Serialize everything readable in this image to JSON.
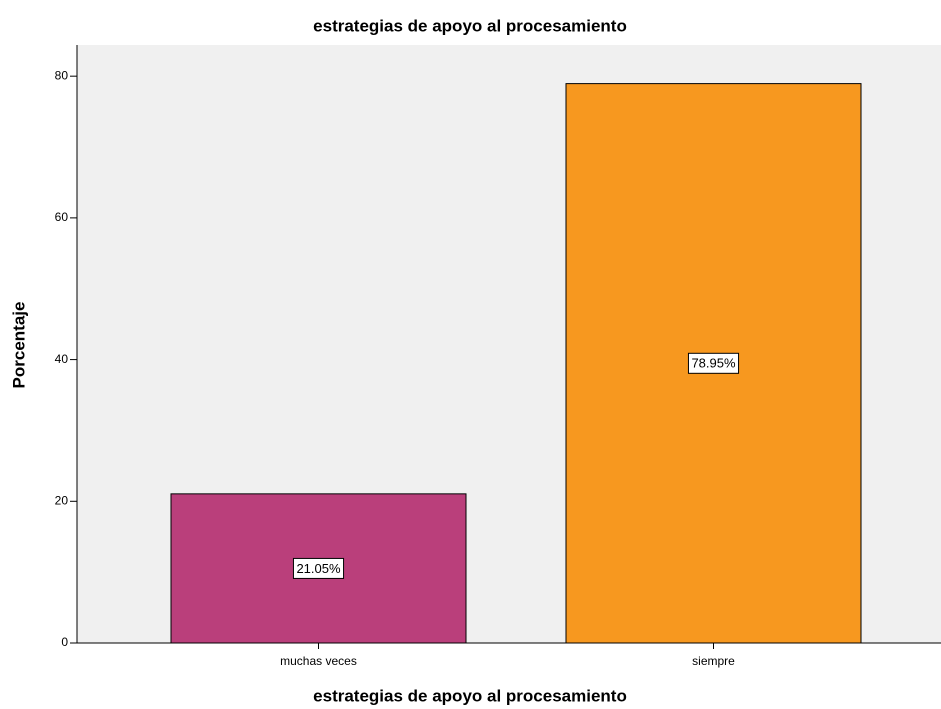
{
  "chart_data": {
    "type": "bar",
    "title": "estrategias de apoyo al procesamiento",
    "x_label": "estrategias de apoyo al procesamiento",
    "y_label": "Porcentaje",
    "categories": [
      "muchas veces",
      "siempre"
    ],
    "values": [
      21.05,
      78.95
    ],
    "value_labels": [
      "21.05%",
      "78.95%"
    ],
    "colors": [
      "#ba3f7b",
      "#f7981f"
    ],
    "ylim": [
      0,
      84.4
    ],
    "yticks": [
      0,
      20,
      40,
      60,
      80
    ],
    "grid": false
  }
}
